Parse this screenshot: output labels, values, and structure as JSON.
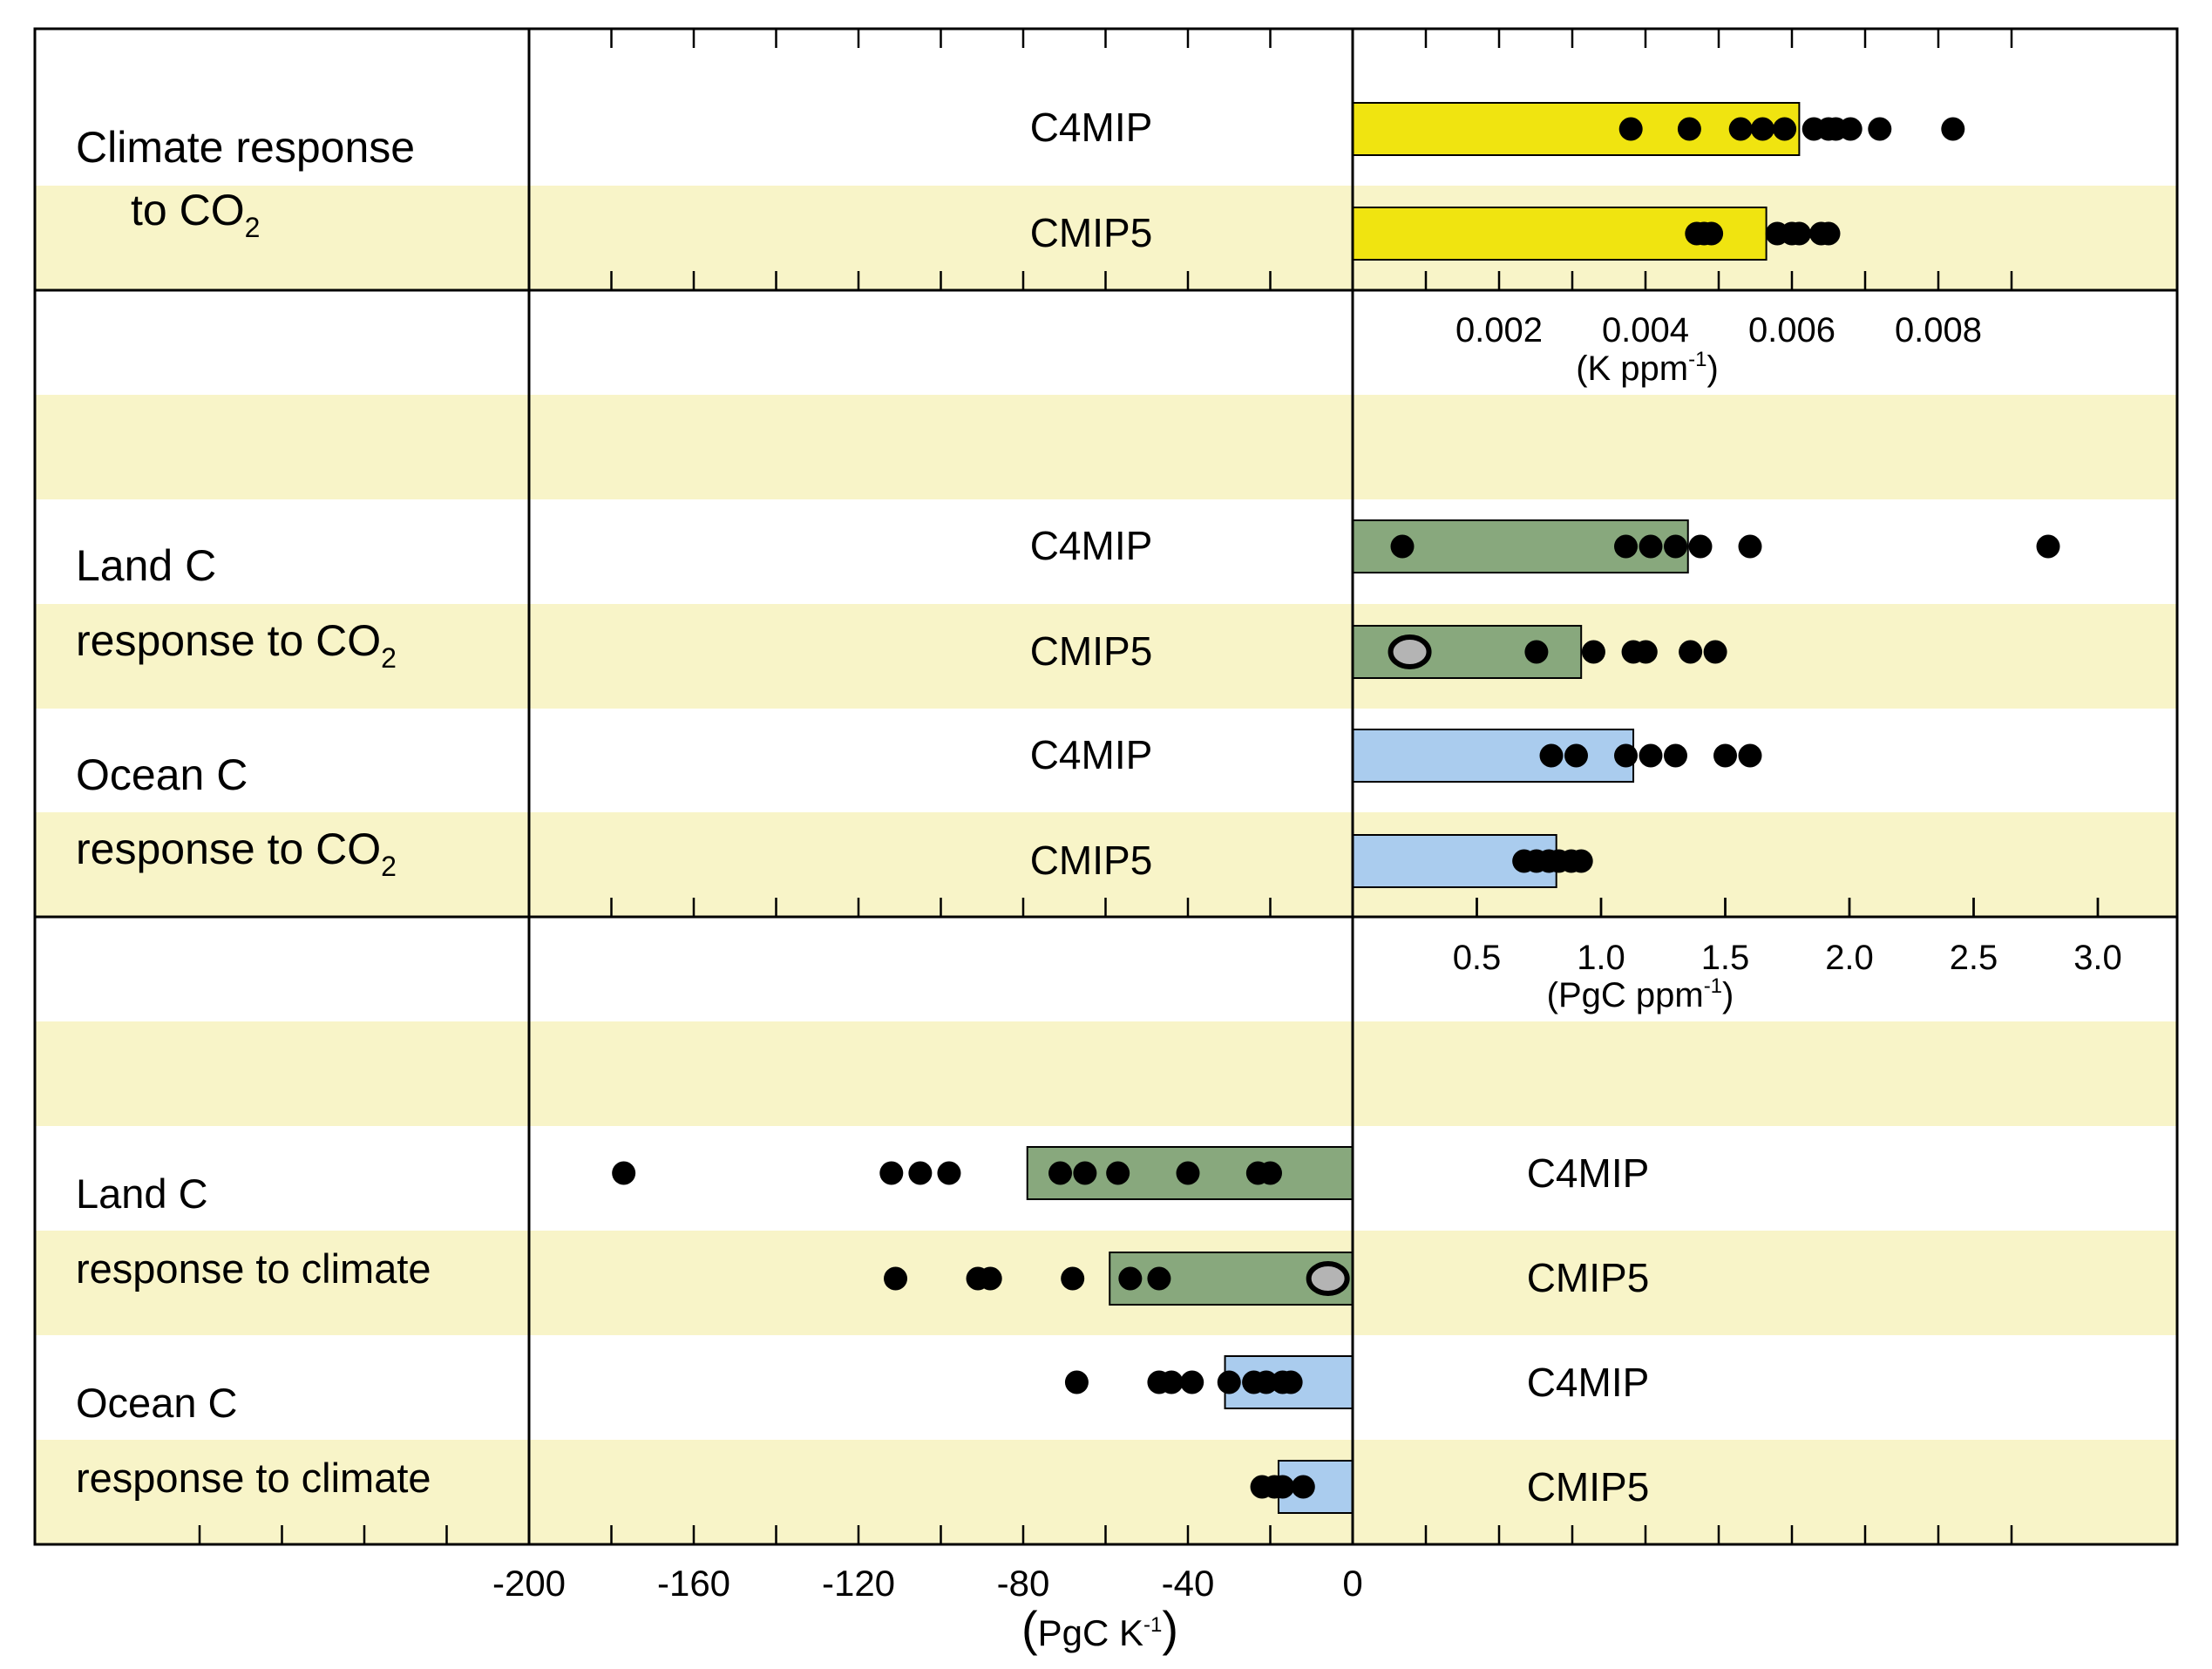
{
  "chart_data": [
    {
      "type": "bar",
      "panel": "climate-response-to-co2",
      "row_label": {
        "line1": "Climate response",
        "line2": "to CO",
        "line2_sub": "2"
      },
      "x_unit_label": {
        "main": "(K ppm",
        "sup": "-1",
        "close": ")"
      },
      "xlim": [
        0,
        0.01
      ],
      "xticks": [
        0.002,
        0.004,
        0.006,
        0.008
      ],
      "xtick_labels": [
        "0.002",
        "0.004",
        "0.006",
        "0.008"
      ],
      "bar_color": "#f0e410",
      "grid": false,
      "series": [
        {
          "name": "C4MIP",
          "mean": 0.0061,
          "models": [
            0.0038,
            0.0046,
            0.0053,
            0.0056,
            0.0059,
            0.0063,
            0.0065,
            0.0066,
            0.0068,
            0.0072,
            0.0082
          ],
          "highlighted": []
        },
        {
          "name": "CMIP5",
          "mean": 0.00565,
          "models": [
            0.0047,
            0.0048,
            0.0049,
            0.0058,
            0.006,
            0.0061,
            0.0064,
            0.0065
          ],
          "highlighted": []
        }
      ]
    },
    {
      "type": "bar",
      "panel": "carbon-response-to-co2",
      "x_unit_label": {
        "main": "(PgC ppm",
        "sup": "-1",
        "close": ")"
      },
      "xlim": [
        0,
        3.3
      ],
      "xticks": [
        0.5,
        1.0,
        1.5,
        2.0,
        2.5,
        3.0
      ],
      "xtick_labels": [
        "0.5",
        "1.0",
        "1.5",
        "2.0",
        "2.5",
        "3.0"
      ],
      "grid": false,
      "groups": [
        {
          "row_label": {
            "line1": "Land C",
            "line2": "response to CO",
            "line2_sub": "2"
          },
          "bar_color": "#88a87d",
          "series": [
            {
              "name": "C4MIP",
              "mean": 1.35,
              "models": [
                0.2,
                1.1,
                1.2,
                1.3,
                1.4,
                1.6,
                2.8
              ],
              "highlighted": []
            },
            {
              "name": "CMIP5",
              "mean": 0.92,
              "models": [
                0.23,
                0.74,
                0.97,
                1.13,
                1.18,
                1.36,
                1.46
              ],
              "highlighted": [
                0
              ]
            }
          ]
        },
        {
          "row_label": {
            "line1": "Ocean C",
            "line2": "response to CO",
            "line2_sub": "2"
          },
          "bar_color": "#aaccee",
          "series": [
            {
              "name": "C4MIP",
              "mean": 1.13,
              "models": [
                0.8,
                0.9,
                1.1,
                1.2,
                1.3,
                1.5,
                1.6
              ],
              "highlighted": []
            },
            {
              "name": "CMIP5",
              "mean": 0.82,
              "models": [
                0.69,
                0.74,
                0.79,
                0.83,
                0.88,
                0.92
              ],
              "highlighted": []
            }
          ]
        }
      ]
    },
    {
      "type": "bar",
      "panel": "carbon-response-to-climate",
      "x_unit_label": {
        "main": "PgC K",
        "sup": "-1",
        "open": "(",
        "close": ")"
      },
      "xlim": [
        -200,
        0
      ],
      "xticks": [
        -200,
        -160,
        -120,
        -80,
        -40,
        0
      ],
      "xtick_labels": [
        "-200",
        "-160",
        "-120",
        "-80",
        "-40",
        "0"
      ],
      "grid": false,
      "groups": [
        {
          "row_label": {
            "line1": "Land C",
            "line2": "response to climate",
            "line2_sub": ""
          },
          "bar_color": "#88a87d",
          "series": [
            {
              "name": "C4MIP",
              "mean": -79,
              "models": [
                -177,
                -112,
                -105,
                -98,
                -71,
                -65,
                -57,
                -40,
                -23,
                -20
              ],
              "highlighted": []
            },
            {
              "name": "CMIP5",
              "mean": -59,
              "models": [
                -111,
                -91,
                -88,
                -68,
                -54,
                -47,
                -6
              ],
              "highlighted": [
                6
              ]
            }
          ]
        },
        {
          "row_label": {
            "line1": "Ocean C",
            "line2": "response to climate",
            "line2_sub": ""
          },
          "bar_color": "#aaccee",
          "series": [
            {
              "name": "C4MIP",
              "mean": -31,
              "models": [
                -67,
                -47,
                -44,
                -39,
                -30,
                -24,
                -21,
                -17,
                -15
              ],
              "highlighted": []
            },
            {
              "name": "CMIP5",
              "mean": -18,
              "models": [
                -22,
                -19,
                -17,
                -12
              ],
              "highlighted": []
            }
          ]
        }
      ]
    }
  ],
  "colors": {
    "stripe": "#f8f4c8",
    "frame": "#000000",
    "dot": "#000000",
    "highlight_dot": "#b4b4b4"
  }
}
